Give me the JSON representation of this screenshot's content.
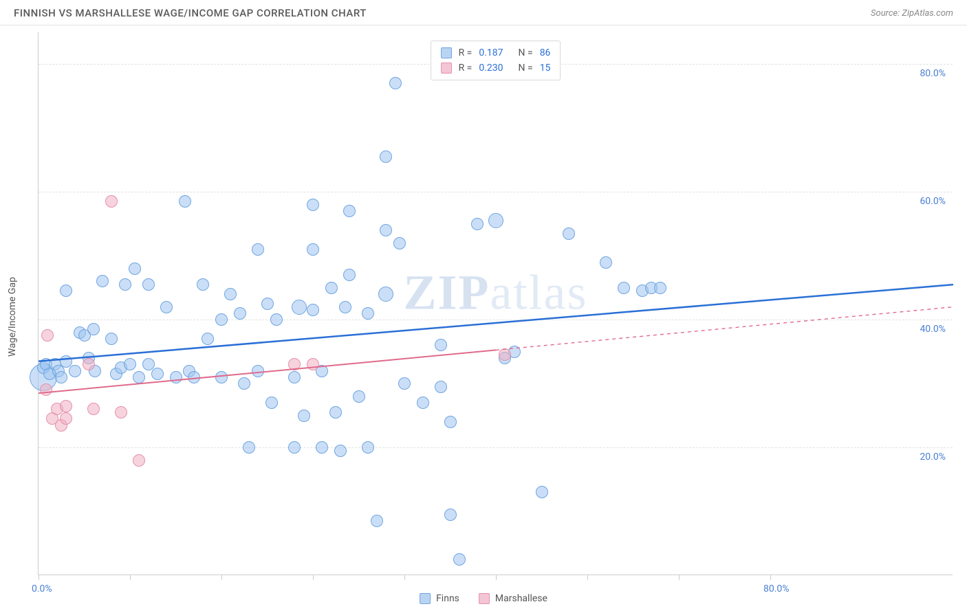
{
  "header": {
    "title": "FINNISH VS MARSHALLESE WAGE/INCOME GAP CORRELATION CHART",
    "source": "Source: ZipAtlas.com"
  },
  "chart": {
    "type": "scatter",
    "y_title": "Wage/Income Gap",
    "watermark_bold": "ZIP",
    "watermark_light": "atlas",
    "xlim": [
      0,
      100
    ],
    "ylim": [
      0,
      85
    ],
    "x_ticks_major": [
      0,
      10,
      20,
      30,
      40,
      50,
      60,
      70,
      80
    ],
    "x_labels": [
      {
        "v": 0,
        "t": "0.0%"
      },
      {
        "v": 80,
        "t": "80.0%"
      }
    ],
    "y_gridlines": [
      20,
      40,
      60,
      80
    ],
    "y_labels": [
      {
        "v": 20,
        "t": "20.0%"
      },
      {
        "v": 40,
        "t": "40.0%"
      },
      {
        "v": 60,
        "t": "60.0%"
      },
      {
        "v": 80,
        "t": "80.0%"
      }
    ],
    "background_color": "#ffffff",
    "grid_color": "#e0e0e0",
    "border_color": "#cccccc",
    "series": {
      "finns": {
        "label": "Finns",
        "fill": "rgba(158, 196, 240, 0.55)",
        "stroke": "#6fa4e0",
        "swatch_fill": "#b9d4f2",
        "swatch_border": "#6fa4e0",
        "trend_color": "#2a6fd6",
        "trend_width": 2.5,
        "trend": {
          "x1": 0,
          "y1": 33.5,
          "x2": 100,
          "y2": 45.5
        },
        "trend_dash_from": 100,
        "r_label": "R =",
        "r_value": "0.187",
        "n_label": "N =",
        "n_value": "86",
        "marker_r": 9,
        "points": [
          {
            "x": 0.5,
            "y": 31,
            "r": 20
          },
          {
            "x": 0.5,
            "y": 32.5
          },
          {
            "x": 0.8,
            "y": 33
          },
          {
            "x": 1.2,
            "y": 31.5
          },
          {
            "x": 1.8,
            "y": 33
          },
          {
            "x": 2.2,
            "y": 32
          },
          {
            "x": 2.5,
            "y": 31
          },
          {
            "x": 3,
            "y": 33.5
          },
          {
            "x": 3,
            "y": 44.5
          },
          {
            "x": 4,
            "y": 32
          },
          {
            "x": 4.5,
            "y": 38
          },
          {
            "x": 5,
            "y": 37.5
          },
          {
            "x": 5.5,
            "y": 34
          },
          {
            "x": 6,
            "y": 38.5
          },
          {
            "x": 6.2,
            "y": 32
          },
          {
            "x": 7,
            "y": 46
          },
          {
            "x": 8,
            "y": 37
          },
          {
            "x": 8.5,
            "y": 31.5
          },
          {
            "x": 9,
            "y": 32.5
          },
          {
            "x": 9.5,
            "y": 45.5
          },
          {
            "x": 10,
            "y": 33
          },
          {
            "x": 10.5,
            "y": 48
          },
          {
            "x": 11,
            "y": 31
          },
          {
            "x": 12,
            "y": 45.5
          },
          {
            "x": 12,
            "y": 33
          },
          {
            "x": 13,
            "y": 31.5
          },
          {
            "x": 14,
            "y": 42
          },
          {
            "x": 15,
            "y": 31
          },
          {
            "x": 16,
            "y": 58.5
          },
          {
            "x": 16.5,
            "y": 32
          },
          {
            "x": 17,
            "y": 31
          },
          {
            "x": 18,
            "y": 45.5
          },
          {
            "x": 18.5,
            "y": 37
          },
          {
            "x": 20,
            "y": 40
          },
          {
            "x": 20,
            "y": 31
          },
          {
            "x": 21,
            "y": 44
          },
          {
            "x": 22,
            "y": 41
          },
          {
            "x": 22.5,
            "y": 30
          },
          {
            "x": 23,
            "y": 20
          },
          {
            "x": 24,
            "y": 51
          },
          {
            "x": 24,
            "y": 32
          },
          {
            "x": 25,
            "y": 42.5
          },
          {
            "x": 25.5,
            "y": 27
          },
          {
            "x": 26,
            "y": 40
          },
          {
            "x": 28,
            "y": 20
          },
          {
            "x": 28,
            "y": 31
          },
          {
            "x": 28.5,
            "y": 42,
            "r": 11
          },
          {
            "x": 29,
            "y": 25
          },
          {
            "x": 30,
            "y": 51
          },
          {
            "x": 30,
            "y": 58
          },
          {
            "x": 30,
            "y": 41.5
          },
          {
            "x": 31,
            "y": 20
          },
          {
            "x": 31,
            "y": 32
          },
          {
            "x": 32,
            "y": 45
          },
          {
            "x": 32.5,
            "y": 25.5
          },
          {
            "x": 33,
            "y": 19.5
          },
          {
            "x": 33.5,
            "y": 42
          },
          {
            "x": 34,
            "y": 47
          },
          {
            "x": 34,
            "y": 57
          },
          {
            "x": 35,
            "y": 28
          },
          {
            "x": 36,
            "y": 41
          },
          {
            "x": 36,
            "y": 20
          },
          {
            "x": 37,
            "y": 8.5
          },
          {
            "x": 38,
            "y": 44,
            "r": 11
          },
          {
            "x": 38,
            "y": 65.5
          },
          {
            "x": 38,
            "y": 54
          },
          {
            "x": 39,
            "y": 77
          },
          {
            "x": 39.5,
            "y": 52
          },
          {
            "x": 40,
            "y": 30
          },
          {
            "x": 42,
            "y": 27
          },
          {
            "x": 44,
            "y": 36
          },
          {
            "x": 44,
            "y": 29.5
          },
          {
            "x": 45,
            "y": 9.5
          },
          {
            "x": 45,
            "y": 24
          },
          {
            "x": 46,
            "y": 2.5
          },
          {
            "x": 48,
            "y": 55
          },
          {
            "x": 50,
            "y": 55.5,
            "r": 11
          },
          {
            "x": 51,
            "y": 34
          },
          {
            "x": 52,
            "y": 35
          },
          {
            "x": 55,
            "y": 13
          },
          {
            "x": 58,
            "y": 53.5
          },
          {
            "x": 62,
            "y": 49
          },
          {
            "x": 64,
            "y": 45
          },
          {
            "x": 66,
            "y": 44.5
          },
          {
            "x": 67,
            "y": 45
          },
          {
            "x": 68,
            "y": 45
          }
        ]
      },
      "marshallese": {
        "label": "Marshallese",
        "fill": "rgba(240, 175, 195, 0.55)",
        "stroke": "#e391ab",
        "swatch_fill": "#f4c5d4",
        "swatch_border": "#e391ab",
        "trend_color": "#e06a8b",
        "trend_width": 2,
        "trend": {
          "x1": 0,
          "y1": 28.5,
          "x2": 100,
          "y2": 42
        },
        "trend_dash_from": 50,
        "r_label": "R =",
        "r_value": "0.230",
        "n_label": "N =",
        "n_value": "15",
        "marker_r": 9,
        "points": [
          {
            "x": 0.8,
            "y": 29
          },
          {
            "x": 1,
            "y": 37.5
          },
          {
            "x": 1.5,
            "y": 24.5
          },
          {
            "x": 2,
            "y": 26
          },
          {
            "x": 2.5,
            "y": 23.5
          },
          {
            "x": 3,
            "y": 26.5
          },
          {
            "x": 3,
            "y": 24.5
          },
          {
            "x": 5.5,
            "y": 33
          },
          {
            "x": 6,
            "y": 26
          },
          {
            "x": 8,
            "y": 58.5
          },
          {
            "x": 9,
            "y": 25.5
          },
          {
            "x": 11,
            "y": 18
          },
          {
            "x": 28,
            "y": 33
          },
          {
            "x": 30,
            "y": 33
          },
          {
            "x": 51,
            "y": 34.5
          }
        ]
      }
    }
  }
}
